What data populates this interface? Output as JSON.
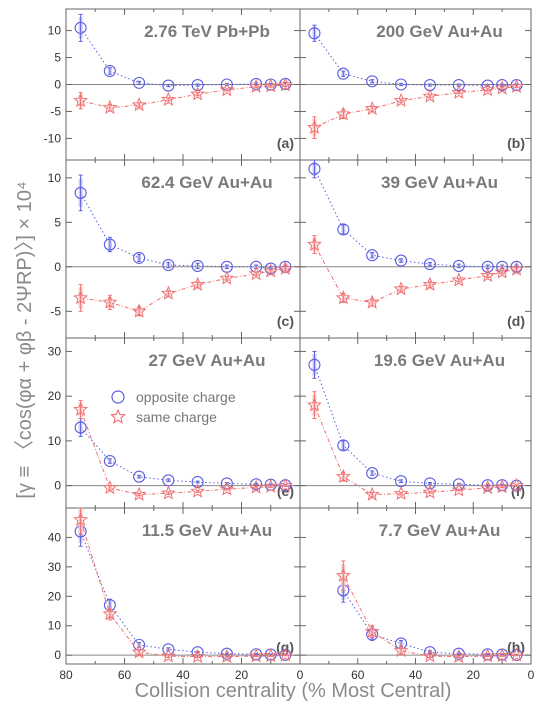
{
  "figure": {
    "xlabel": "Collision centrality (% Most Central)",
    "ylabel": "[γ ≡ 〈cos(φα + φβ - 2ΨRP)〉] × 10⁴",
    "legend": {
      "opposite": "opposite charge",
      "same": "same charge",
      "placement": "upper-left, panel (e)"
    },
    "colors": {
      "opposite": "#5b5ee0",
      "same": "#f07070",
      "opposite_sys": "#c5c7f4",
      "same_sys": "#f8c4c4",
      "frame": "#666666"
    }
  },
  "chart_data": [
    {
      "type": "scatter",
      "panel_id": "a",
      "title": "2.76 TeV Pb+Pb",
      "label": "(a)",
      "xlim": [
        80,
        0
      ],
      "ylim": [
        -14,
        14
      ],
      "yticks": [
        -10,
        -5,
        0,
        5,
        10
      ],
      "xticks": [
        80,
        60,
        40,
        20,
        0
      ],
      "series": [
        {
          "name": "opposite charge",
          "x": [
            75,
            65,
            55,
            45,
            35,
            25,
            15,
            10,
            5
          ],
          "y": [
            10.5,
            2.5,
            0.3,
            -0.2,
            -0.1,
            0,
            0.1,
            0,
            0.1
          ],
          "err": [
            2.5,
            0.6,
            0.3,
            0.2,
            0.2,
            0.2,
            0.2,
            0.2,
            0.3
          ]
        },
        {
          "name": "same charge",
          "x": [
            75,
            65,
            55,
            45,
            35,
            25,
            15,
            10,
            5
          ],
          "y": [
            -3,
            -4.3,
            -3.8,
            -2.8,
            -1.8,
            -1,
            -0.4,
            -0.3,
            -0.1
          ],
          "err": [
            1.5,
            0.6,
            0.4,
            0.3,
            0.3,
            0.2,
            0.2,
            0.2,
            0.3
          ]
        }
      ]
    },
    {
      "type": "scatter",
      "panel_id": "b",
      "title": "200 GeV Au+Au",
      "label": "(b)",
      "xlim": [
        80,
        0
      ],
      "ylim": [
        -14,
        14
      ],
      "yticks": [
        -10,
        -5,
        0,
        5,
        10
      ],
      "xticks": [
        80,
        60,
        40,
        20,
        0
      ],
      "series": [
        {
          "name": "opposite charge",
          "x": [
            75,
            65,
            55,
            45,
            35,
            25,
            15,
            10,
            5
          ],
          "y": [
            9.5,
            2,
            0.6,
            0,
            -0.1,
            -0.1,
            -0.2,
            -0.1,
            -0.1
          ],
          "err": [
            1.5,
            0.5,
            0.3,
            0.2,
            0.2,
            0.2,
            0.2,
            0.2,
            0.2
          ]
        },
        {
          "name": "same charge",
          "x": [
            75,
            65,
            55,
            45,
            35,
            25,
            15,
            10,
            5
          ],
          "y": [
            -8,
            -5.5,
            -4.5,
            -3,
            -2.2,
            -1.5,
            -1,
            -0.7,
            -0.4
          ],
          "err": [
            2,
            0.8,
            0.5,
            0.3,
            0.3,
            0.2,
            0.2,
            0.2,
            0.2
          ]
        }
      ]
    },
    {
      "type": "scatter",
      "panel_id": "c",
      "title": "62.4 GeV Au+Au",
      "label": "(c)",
      "xlim": [
        80,
        0
      ],
      "ylim": [
        -8,
        12
      ],
      "yticks": [
        -5,
        0,
        5,
        10
      ],
      "xticks": [
        80,
        60,
        40,
        20,
        0
      ],
      "series": [
        {
          "name": "opposite charge",
          "x": [
            75,
            65,
            55,
            45,
            35,
            25,
            15,
            10,
            5
          ],
          "y": [
            8.3,
            2.5,
            1,
            0.2,
            0.1,
            0,
            0,
            -0.2,
            0
          ],
          "err": [
            2,
            0.8,
            0.4,
            0.3,
            0.3,
            0.2,
            0.2,
            0.2,
            0.2
          ]
        },
        {
          "name": "same charge",
          "x": [
            75,
            65,
            55,
            45,
            35,
            25,
            15,
            10,
            5
          ],
          "y": [
            -3.5,
            -4,
            -5,
            -3,
            -2,
            -1.3,
            -0.8,
            -0.5,
            -0.2
          ],
          "err": [
            1.5,
            0.8,
            0.5,
            0.3,
            0.3,
            0.2,
            0.2,
            0.2,
            0.2
          ]
        }
      ]
    },
    {
      "type": "scatter",
      "panel_id": "d",
      "title": "39 GeV Au+Au",
      "label": "(d)",
      "xlim": [
        80,
        0
      ],
      "ylim": [
        -8,
        12
      ],
      "yticks": [
        -5,
        0,
        5,
        10
      ],
      "xticks": [
        80,
        60,
        40,
        20,
        0
      ],
      "series": [
        {
          "name": "opposite charge",
          "x": [
            75,
            65,
            55,
            45,
            35,
            25,
            15,
            10,
            5
          ],
          "y": [
            11,
            4.2,
            1.3,
            0.7,
            0.3,
            0.1,
            0,
            0,
            0
          ],
          "err": [
            1,
            0.5,
            0.3,
            0.2,
            0.2,
            0.2,
            0.2,
            0.2,
            0.2
          ]
        },
        {
          "name": "same charge",
          "x": [
            75,
            65,
            55,
            45,
            35,
            25,
            15,
            10,
            5
          ],
          "y": [
            2.5,
            -3.5,
            -4,
            -2.5,
            -2,
            -1.5,
            -1,
            -0.6,
            -0.3
          ],
          "err": [
            1,
            0.5,
            0.4,
            0.3,
            0.3,
            0.2,
            0.2,
            0.2,
            0.2
          ]
        }
      ]
    },
    {
      "type": "scatter",
      "panel_id": "e",
      "title": "27 GeV Au+Au",
      "label": "(e)",
      "xlim": [
        80,
        0
      ],
      "ylim": [
        -5,
        33
      ],
      "yticks": [
        0,
        10,
        20,
        30
      ],
      "xticks": [
        80,
        60,
        40,
        20,
        0
      ],
      "series": [
        {
          "name": "opposite charge",
          "x": [
            75,
            65,
            55,
            45,
            35,
            25,
            15,
            10,
            5
          ],
          "y": [
            13,
            5.5,
            2,
            1.2,
            0.8,
            0.5,
            0.3,
            0.2,
            0.1
          ],
          "err": [
            2,
            0.5,
            0.3,
            0.3,
            0.2,
            0.2,
            0.2,
            0.2,
            0.2
          ]
        },
        {
          "name": "same charge",
          "x": [
            75,
            65,
            55,
            45,
            35,
            25,
            15,
            10,
            5
          ],
          "y": [
            17,
            -0.5,
            -2,
            -1.7,
            -1.3,
            -0.8,
            -0.4,
            -0.2,
            0
          ],
          "err": [
            2,
            0.5,
            0.3,
            0.3,
            0.2,
            0.2,
            0.2,
            0.2,
            0.2
          ]
        }
      ]
    },
    {
      "type": "scatter",
      "panel_id": "f",
      "title": "19.6 GeV Au+Au",
      "label": "(f)",
      "xlim": [
        80,
        0
      ],
      "ylim": [
        -5,
        33
      ],
      "yticks": [
        0,
        10,
        20,
        30
      ],
      "xticks": [
        80,
        60,
        40,
        20,
        0
      ],
      "series": [
        {
          "name": "opposite charge",
          "x": [
            75,
            65,
            55,
            45,
            35,
            25,
            15,
            10,
            5
          ],
          "y": [
            27,
            9,
            2.8,
            1,
            0.5,
            0.3,
            0.1,
            0.1,
            0
          ],
          "err": [
            3,
            1,
            0.5,
            0.3,
            0.2,
            0.2,
            0.2,
            0.2,
            0.2
          ]
        },
        {
          "name": "same charge",
          "x": [
            75,
            65,
            55,
            45,
            35,
            25,
            15,
            10,
            5
          ],
          "y": [
            18,
            2,
            -2,
            -1.8,
            -1.5,
            -1,
            -0.5,
            -0.3,
            0
          ],
          "err": [
            3,
            1,
            0.5,
            0.3,
            0.2,
            0.2,
            0.2,
            0.2,
            0.2
          ]
        }
      ]
    },
    {
      "type": "scatter",
      "panel_id": "g",
      "title": "11.5 GeV Au+Au",
      "label": "(g)",
      "xlim": [
        80,
        0
      ],
      "ylim": [
        -3,
        50
      ],
      "yticks": [
        0,
        10,
        20,
        30,
        40
      ],
      "xticks": [
        80,
        60,
        40,
        20,
        0
      ],
      "series": [
        {
          "name": "opposite charge",
          "x": [
            75,
            65,
            55,
            45,
            35,
            25,
            15,
            10,
            5
          ],
          "y": [
            42,
            17,
            3.5,
            2,
            1,
            0.5,
            0.3,
            0.2,
            0.1
          ],
          "err": [
            5,
            2,
            0.8,
            0.5,
            0.3,
            0.2,
            0.2,
            0.2,
            0.2
          ]
        },
        {
          "name": "same charge",
          "x": [
            75,
            65,
            55,
            45,
            35,
            25,
            15,
            10,
            5
          ],
          "y": [
            46,
            14,
            1,
            -0.3,
            -0.5,
            -0.5,
            -0.3,
            -0.2,
            0
          ],
          "err": [
            5,
            2,
            0.8,
            0.5,
            0.3,
            0.2,
            0.2,
            0.2,
            0.2
          ]
        }
      ]
    },
    {
      "type": "scatter",
      "panel_id": "h",
      "title": "7.7 GeV Au+Au",
      "label": "(h)",
      "xlim": [
        80,
        0
      ],
      "ylim": [
        -3,
        50
      ],
      "yticks": [
        0,
        10,
        20,
        30,
        40
      ],
      "xticks": [
        80,
        60,
        40,
        20,
        0
      ],
      "series": [
        {
          "name": "opposite charge",
          "x": [
            65,
            55,
            45,
            35,
            25,
            15,
            10,
            5
          ],
          "y": [
            22,
            7,
            4,
            1,
            0.5,
            0.3,
            0.2,
            0.1
          ],
          "err": [
            4,
            2,
            1,
            0.5,
            0.3,
            0.2,
            0.2,
            0.2
          ]
        },
        {
          "name": "same charge",
          "x": [
            65,
            55,
            45,
            35,
            25,
            15,
            10,
            5
          ],
          "y": [
            27,
            8,
            1.5,
            -0.3,
            -0.5,
            -0.3,
            -0.2,
            0
          ],
          "err": [
            5,
            2,
            1,
            0.5,
            0.3,
            0.2,
            0.2,
            0.2
          ]
        }
      ]
    }
  ]
}
